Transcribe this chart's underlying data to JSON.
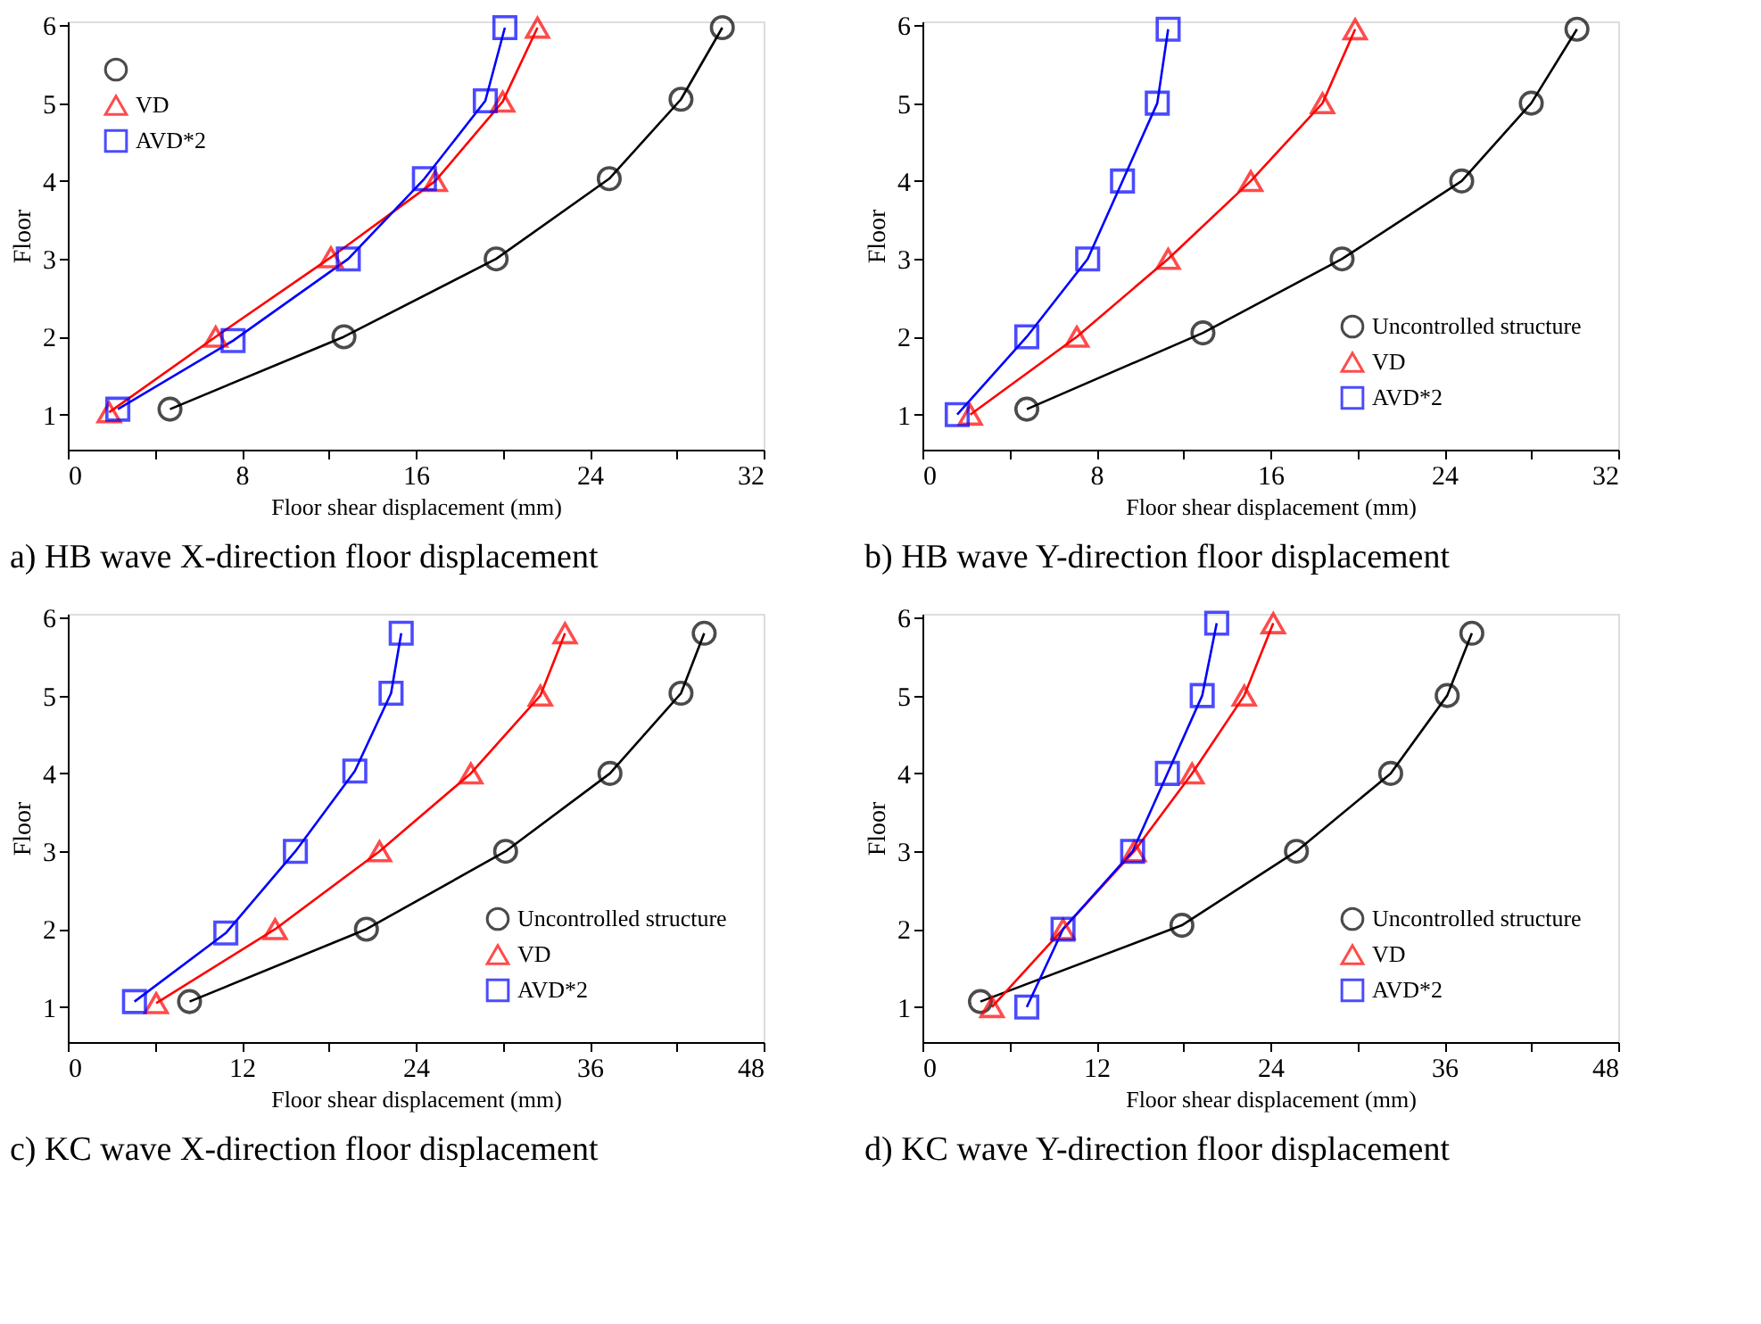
{
  "chart_data": [
    {
      "type": "line",
      "title": "a) HB wave X-direction floor displacement",
      "xlabel": "Floor shear displacement (mm)",
      "ylabel": "Floor",
      "xlim": [
        0,
        32
      ],
      "ylim": [
        0.55,
        6.05
      ],
      "xticks": [
        0,
        {
          "value": 4,
          "label": null
        },
        8,
        {
          "value": 12,
          "label": null
        },
        16,
        {
          "value": 20,
          "label": null
        },
        24,
        {
          "value": 28,
          "label": null
        },
        32
      ],
      "yticks": [
        1,
        2,
        3,
        4,
        5,
        6
      ],
      "grid": false,
      "legend": "top left",
      "line_style": "solid",
      "series": [
        {
          "name": null,
          "color": "#000000",
          "marker": "circle",
          "x": [
            4.7,
            12.7,
            19.7,
            24.9,
            28.2,
            30.1
          ],
          "values": [
            1.07,
            2,
            3,
            4.03,
            5.05,
            5.97
          ]
        },
        {
          "name": "VD",
          "color": "#ff0000",
          "marker": "triangle",
          "x": [
            1.9,
            6.8,
            12.1,
            16.9,
            20.0,
            21.6
          ],
          "values": [
            1.03,
            2,
            3.02,
            4,
            5.02,
            5.97
          ]
        },
        {
          "name": "AVD*2",
          "color": "#0000ff",
          "marker": "square",
          "x": [
            2.3,
            7.6,
            12.9,
            16.4,
            19.2,
            20.1
          ],
          "values": [
            1.07,
            1.95,
            3,
            4.03,
            5.03,
            5.97
          ]
        }
      ]
    },
    {
      "type": "line",
      "title": "b) HB wave Y-direction floor displacement",
      "xlabel": "Floor shear displacement (mm)",
      "ylabel": "Floor",
      "xlim": [
        0,
        32
      ],
      "ylim": [
        0.55,
        6.05
      ],
      "xticks": [
        0,
        {
          "value": 4,
          "label": null
        },
        8,
        {
          "value": 12,
          "label": null
        },
        16,
        {
          "value": 20,
          "label": null
        },
        24,
        {
          "value": 28,
          "label": null
        },
        32
      ],
      "yticks": [
        1,
        2,
        3,
        4,
        5,
        6
      ],
      "grid": false,
      "legend": "bottom right",
      "line_style": "solid",
      "series": [
        {
          "name": "Uncontrolled structure",
          "color": "#000000",
          "marker": "circle",
          "x": [
            4.8,
            12.9,
            19.3,
            24.8,
            28.0,
            30.1
          ],
          "values": [
            1.07,
            2.05,
            3,
            4,
            5,
            5.95
          ]
        },
        {
          "name": "VD",
          "color": "#ff0000",
          "marker": "triangle",
          "x": [
            2.2,
            7.1,
            11.3,
            15.1,
            18.4,
            19.9
          ],
          "values": [
            1,
            2,
            3,
            4,
            5,
            5.95
          ]
        },
        {
          "name": "AVD*2",
          "color": "#0000ff",
          "marker": "square",
          "x": [
            1.6,
            4.8,
            7.6,
            9.2,
            10.8,
            11.3
          ],
          "values": [
            1,
            2,
            3,
            4,
            5,
            5.95
          ]
        }
      ]
    },
    {
      "type": "line",
      "title": "c) KC wave X-direction floor displacement",
      "xlabel": "Floor shear displacement (mm)",
      "ylabel": "Floor",
      "xlim": [
        0,
        48
      ],
      "ylim": [
        0.55,
        6.05
      ],
      "xticks": [
        0,
        {
          "value": 6,
          "label": null
        },
        12,
        {
          "value": 18,
          "label": null
        },
        24,
        {
          "value": 30,
          "label": null
        },
        36,
        {
          "value": 42,
          "label": null
        },
        48
      ],
      "yticks": [
        1,
        2,
        3,
        4,
        5,
        6
      ],
      "grid": false,
      "legend": "bottom right",
      "line_style": "solid",
      "series": [
        {
          "name": "Uncontrolled structure",
          "color": "#000000",
          "marker": "circle",
          "x": [
            8.4,
            20.6,
            30.2,
            37.4,
            42.3,
            43.9
          ],
          "values": [
            1.07,
            2,
            3,
            4,
            5.03,
            5.8
          ]
        },
        {
          "name": "VD",
          "color": "#ff0000",
          "marker": "triangle",
          "x": [
            6.1,
            14.3,
            21.5,
            27.8,
            32.6,
            34.3
          ],
          "values": [
            1.05,
            2,
            3,
            4,
            5,
            5.8
          ]
        },
        {
          "name": "AVD*2",
          "color": "#0000ff",
          "marker": "square",
          "x": [
            4.6,
            10.9,
            15.7,
            19.8,
            22.3,
            23.0
          ],
          "values": [
            1.07,
            1.95,
            3,
            4.03,
            5.03,
            5.8
          ]
        }
      ]
    },
    {
      "type": "line",
      "title": "d) KC wave Y-direction floor displacement",
      "xlabel": "Floor shear displacement (mm)",
      "ylabel": "Floor",
      "xlim": [
        0,
        48
      ],
      "ylim": [
        0.55,
        6.05
      ],
      "xticks": [
        0,
        {
          "value": 6,
          "label": null
        },
        12,
        {
          "value": 18,
          "label": null
        },
        24,
        {
          "value": 30,
          "label": null
        },
        36,
        {
          "value": 42,
          "label": null
        },
        48
      ],
      "yticks": [
        1,
        2,
        3,
        4,
        5,
        6
      ],
      "grid": false,
      "legend": "bottom right",
      "line_style": "solid",
      "series": [
        {
          "name": "Uncontrolled structure",
          "color": "#000000",
          "marker": "circle",
          "x": [
            4.0,
            17.9,
            25.8,
            32.3,
            36.2,
            37.9
          ],
          "values": [
            1.07,
            2.05,
            3,
            4,
            5,
            5.8
          ]
        },
        {
          "name": "VD",
          "color": "#ff0000",
          "marker": "triangle",
          "x": [
            4.8,
            9.7,
            14.6,
            18.6,
            22.2,
            24.2
          ],
          "values": [
            1,
            2,
            3,
            4,
            5,
            5.93
          ]
        },
        {
          "name": "AVD*2",
          "color": "#0000ff",
          "marker": "square",
          "x": [
            7.2,
            9.7,
            14.5,
            16.9,
            19.3,
            20.3
          ],
          "values": [
            1,
            2,
            3,
            4,
            5,
            5.93
          ]
        }
      ]
    }
  ]
}
